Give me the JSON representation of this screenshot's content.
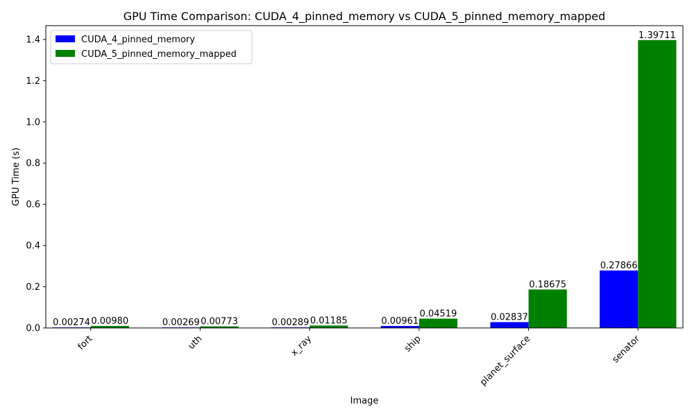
{
  "chart_data": {
    "type": "bar",
    "title": "GPU Time Comparison: CUDA_4_pinned_memory vs CUDA_5_pinned_memory_mapped",
    "xlabel": "Image",
    "ylabel": "GPU Time (s)",
    "ylim": [
      0,
      1.467
    ],
    "yticks": [
      "0.0",
      "0.2",
      "0.4",
      "0.6",
      "0.8",
      "1.0",
      "1.2",
      "1.4"
    ],
    "ytick_values": [
      0,
      0.2,
      0.4,
      0.6,
      0.8,
      1.0,
      1.2,
      1.4
    ],
    "grid": false,
    "legend_position": "top-left",
    "categories": [
      "fort",
      "uth",
      "x_ray",
      "ship",
      "planet_surface",
      "senator"
    ],
    "series": [
      {
        "name": "CUDA_4_pinned_memory",
        "color": "#0000ff",
        "values": [
          0.00274,
          0.00269,
          0.00289,
          0.00961,
          0.02837,
          0.27866
        ],
        "labels": [
          "0.00274",
          "0.00269",
          "0.00289",
          "0.00961",
          "0.02837",
          "0.27866"
        ]
      },
      {
        "name": "CUDA_5_pinned_memory_mapped",
        "color": "#008000",
        "values": [
          0.0098,
          0.00773,
          0.01185,
          0.04519,
          0.18675,
          1.39711
        ],
        "labels": [
          "0.00980",
          "0.00773",
          "0.01185",
          "0.04519",
          "0.18675",
          "1.39711"
        ]
      }
    ]
  }
}
